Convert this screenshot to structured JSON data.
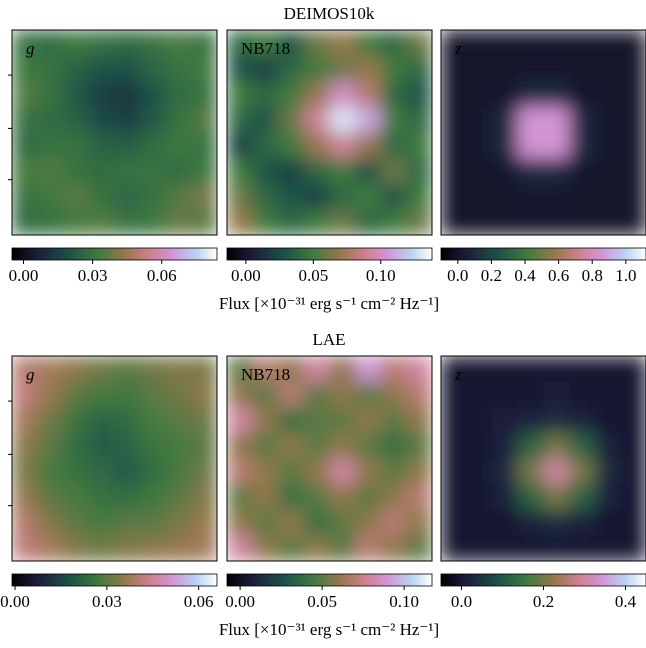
{
  "chart_data": [
    {
      "type": "image",
      "label": "g",
      "cmap": "cubehelix",
      "clim": [
        -0.005,
        0.084
      ],
      "cticks": [
        {
          "value": 0,
          "label": "0.00"
        },
        0.03,
        0.06
      ],
      "image": [
        [
          0.03,
          0.028,
          0.032,
          0.03,
          0.027,
          0.03,
          0.034,
          0.03
        ],
        [
          0.032,
          0.03,
          0.025,
          0.02,
          0.02,
          0.026,
          0.03,
          0.033
        ],
        [
          0.035,
          0.03,
          0.022,
          0.015,
          0.012,
          0.02,
          0.028,
          0.03
        ],
        [
          0.03,
          0.028,
          0.025,
          0.018,
          0.015,
          0.022,
          0.03,
          0.035
        ],
        [
          0.028,
          0.03,
          0.03,
          0.025,
          0.024,
          0.028,
          0.032,
          0.03
        ],
        [
          0.033,
          0.035,
          0.03,
          0.028,
          0.03,
          0.03,
          0.028,
          0.032
        ],
        [
          0.03,
          0.032,
          0.036,
          0.03,
          0.026,
          0.03,
          0.035,
          0.04
        ],
        [
          0.028,
          0.03,
          0.033,
          0.035,
          0.03,
          0.032,
          0.038,
          0.036
        ]
      ]
    },
    {
      "type": "image",
      "label": "NB718",
      "title": "DEIMOS10k",
      "xlabel": "Flux [×10⁻³¹ erg s⁻¹ cm⁻² Hz⁻¹]",
      "cmap": "cubehelix",
      "clim": [
        -0.014,
        0.138
      ],
      "cticks": [
        {
          "value": 0,
          "label": "0.00"
        },
        0.05,
        {
          "value": 0.1,
          "label": "0.10"
        }
      ],
      "image": [
        [
          0.04,
          0.05,
          0.03,
          0.06,
          0.07,
          0.05,
          0.04,
          0.06
        ],
        [
          0.03,
          0.02,
          0.04,
          0.05,
          0.06,
          0.07,
          0.05,
          0.04
        ],
        [
          0.05,
          0.04,
          0.05,
          0.07,
          0.1,
          0.08,
          0.04,
          0.03
        ],
        [
          0.04,
          0.03,
          0.06,
          0.09,
          0.13,
          0.11,
          0.05,
          0.04
        ],
        [
          0.02,
          0.04,
          0.05,
          0.07,
          0.09,
          0.07,
          0.04,
          0.05
        ],
        [
          0.05,
          0.03,
          0.02,
          0.04,
          0.05,
          0.03,
          0.06,
          0.04
        ],
        [
          0.06,
          0.04,
          0.03,
          0.02,
          0.04,
          0.05,
          0.03,
          0.05
        ],
        [
          0.07,
          0.05,
          0.04,
          0.05,
          0.06,
          0.04,
          0.05,
          0.06
        ]
      ]
    },
    {
      "type": "image",
      "label": "z",
      "cmap": "cubehelix",
      "clim": [
        -0.1,
        1.12
      ],
      "cticks": [
        {
          "value": 0,
          "label": "0.0"
        },
        0.2,
        0.4,
        0.6,
        0.8,
        {
          "value": 1,
          "label": "1.0"
        }
      ],
      "image": [
        [
          0,
          0,
          0,
          0,
          0,
          0,
          0,
          0
        ],
        [
          0,
          0,
          0,
          0.01,
          0.01,
          0,
          0,
          0
        ],
        [
          0,
          0,
          0.02,
          0.1,
          0.1,
          0.02,
          0,
          0
        ],
        [
          0,
          0.01,
          0.1,
          0.85,
          0.85,
          0.1,
          0.01,
          0
        ],
        [
          0,
          0.01,
          0.1,
          0.85,
          0.85,
          0.1,
          0.01,
          0
        ],
        [
          0,
          0,
          0.02,
          0.1,
          0.1,
          0.02,
          0,
          0
        ],
        [
          0,
          0,
          0,
          0.01,
          0.01,
          0,
          0,
          0
        ],
        [
          0,
          0,
          0,
          0,
          0,
          0,
          0,
          0
        ]
      ]
    },
    {
      "type": "image",
      "label": "g",
      "cmap": "cubehelix",
      "clim": [
        -0.001,
        0.066
      ],
      "cticks": [
        {
          "value": 0,
          "label": "0.00"
        },
        0.03,
        0.06
      ],
      "image": [
        [
          0.04,
          0.038,
          0.035,
          0.032,
          0.03,
          0.032,
          0.034,
          0.033
        ],
        [
          0.042,
          0.036,
          0.03,
          0.028,
          0.027,
          0.03,
          0.032,
          0.035
        ],
        [
          0.038,
          0.032,
          0.026,
          0.022,
          0.024,
          0.028,
          0.03,
          0.032
        ],
        [
          0.035,
          0.03,
          0.024,
          0.02,
          0.022,
          0.026,
          0.028,
          0.03
        ],
        [
          0.033,
          0.028,
          0.025,
          0.023,
          0.02,
          0.024,
          0.028,
          0.032
        ],
        [
          0.036,
          0.03,
          0.028,
          0.025,
          0.024,
          0.027,
          0.03,
          0.034
        ],
        [
          0.04,
          0.034,
          0.03,
          0.028,
          0.03,
          0.03,
          0.033,
          0.036
        ],
        [
          0.042,
          0.038,
          0.034,
          0.032,
          0.034,
          0.035,
          0.036,
          0.038
        ]
      ]
    },
    {
      "type": "image",
      "label": "NB718",
      "title": "LAE",
      "xlabel": "Flux [×10⁻³¹ erg s⁻¹ cm⁻² Hz⁻¹]",
      "cmap": "cubehelix",
      "clim": [
        -0.008,
        0.117
      ],
      "cticks": [
        {
          "value": 0,
          "label": "0.00"
        },
        0.05,
        {
          "value": 0.1,
          "label": "0.10"
        }
      ],
      "image": [
        [
          0.05,
          0.07,
          0.06,
          0.08,
          0.06,
          0.09,
          0.07,
          0.08
        ],
        [
          0.06,
          0.05,
          0.07,
          0.05,
          0.06,
          0.05,
          0.06,
          0.07
        ],
        [
          0.08,
          0.06,
          0.04,
          0.05,
          0.05,
          0.06,
          0.05,
          0.06
        ],
        [
          0.06,
          0.05,
          0.06,
          0.05,
          0.06,
          0.05,
          0.04,
          0.05
        ],
        [
          0.07,
          0.06,
          0.05,
          0.06,
          0.08,
          0.06,
          0.05,
          0.06
        ],
        [
          0.05,
          0.06,
          0.04,
          0.05,
          0.06,
          0.05,
          0.06,
          0.07
        ],
        [
          0.06,
          0.05,
          0.06,
          0.04,
          0.05,
          0.06,
          0.07,
          0.06
        ],
        [
          0.08,
          0.06,
          0.05,
          0.06,
          0.05,
          0.07,
          0.06,
          0.05
        ]
      ]
    },
    {
      "type": "image",
      "label": "z",
      "cmap": "cubehelix",
      "clim": [
        -0.05,
        0.45
      ],
      "cticks": [
        {
          "value": 0,
          "label": "0.0"
        },
        0.2,
        0.4
      ],
      "image": [
        [
          0,
          0,
          0,
          0,
          0,
          0,
          0,
          0
        ],
        [
          0,
          0,
          0,
          0,
          0.01,
          0,
          0,
          0
        ],
        [
          0,
          0,
          0.01,
          0.02,
          0.03,
          0.02,
          0,
          0
        ],
        [
          0,
          0,
          0.02,
          0.12,
          0.2,
          0.12,
          0.02,
          0
        ],
        [
          0,
          0,
          0.03,
          0.2,
          0.3,
          0.2,
          0.03,
          0
        ],
        [
          0,
          0,
          0.02,
          0.12,
          0.2,
          0.12,
          0.02,
          0
        ],
        [
          0,
          0,
          0,
          0.02,
          0.03,
          0.02,
          0,
          0
        ],
        [
          0,
          0,
          0,
          0,
          0,
          0,
          0,
          0
        ]
      ]
    }
  ]
}
